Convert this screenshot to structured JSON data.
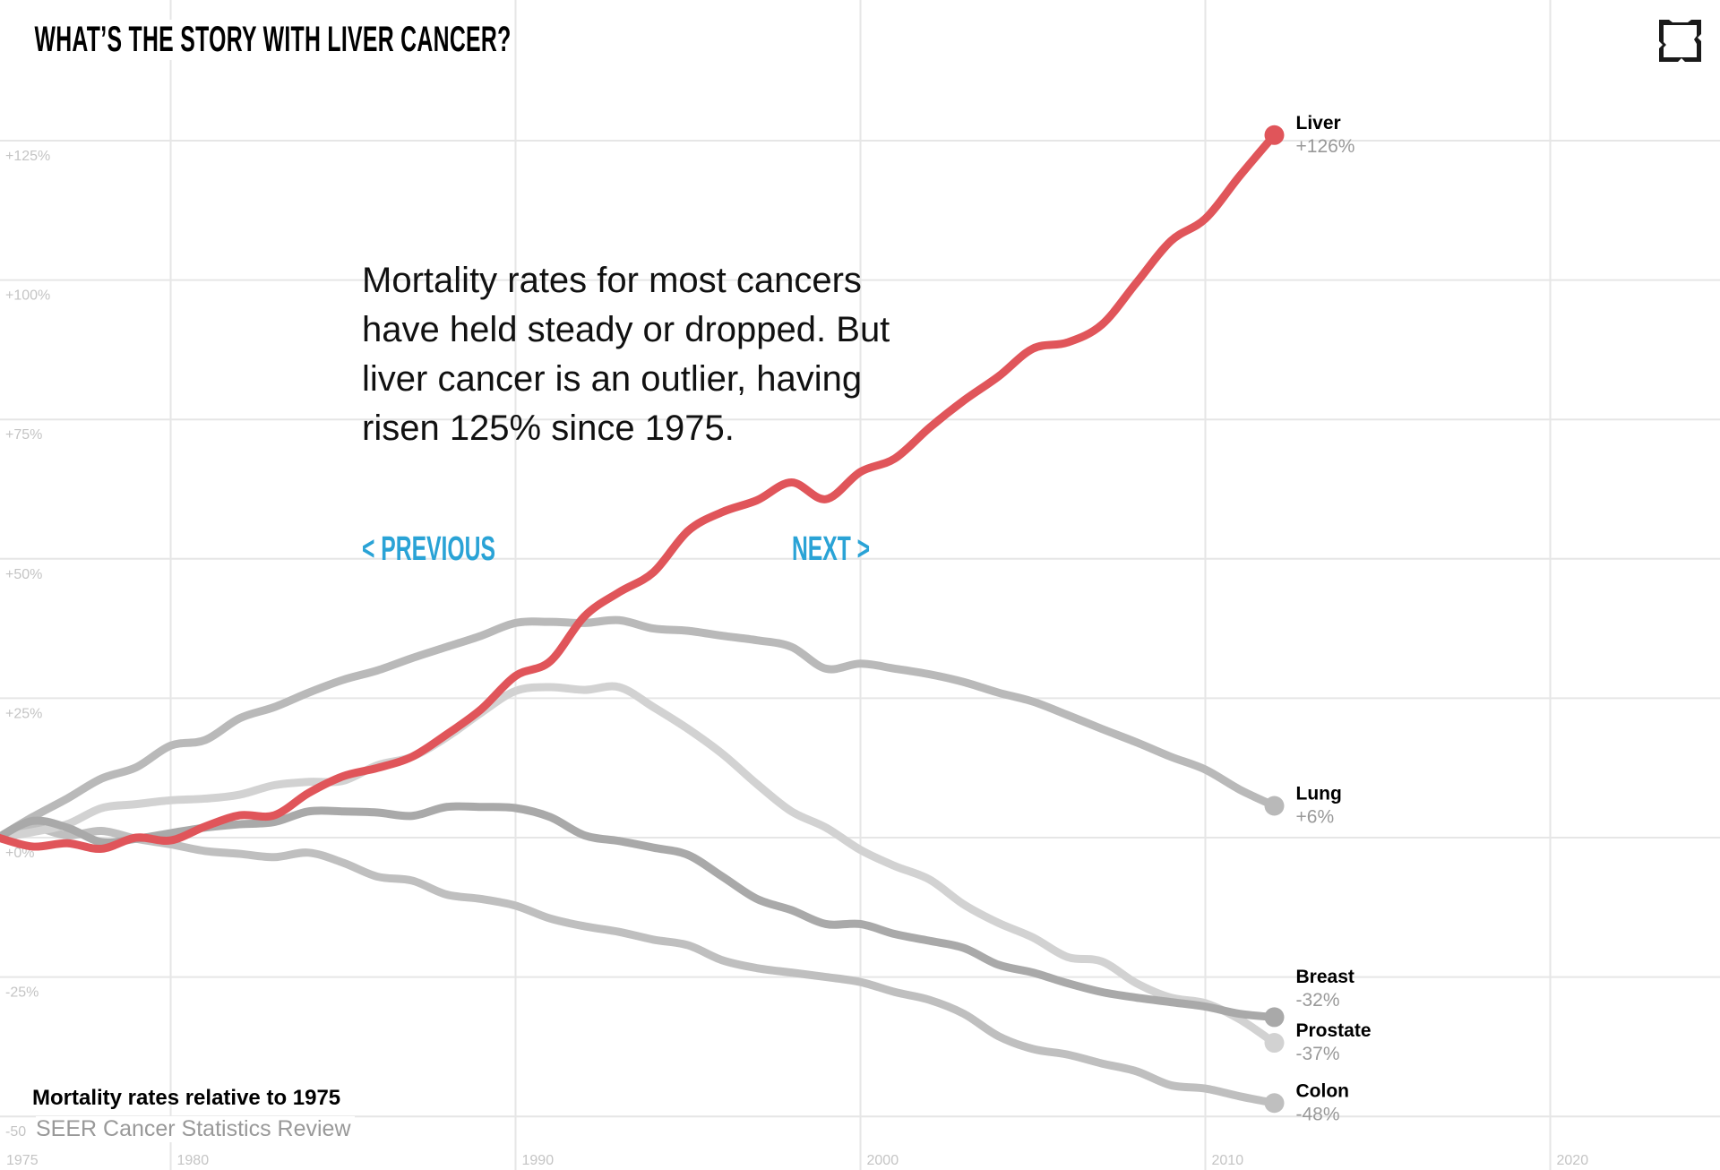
{
  "header": {
    "title": "WHAT’S THE STORY WITH LIVER CANCER?",
    "expand_icon": "fullscreen-icon"
  },
  "story": {
    "text": "Mortality rates for most cancers have held steady or dropped. But liver cancer is an outlier, having risen 125% since 1975.",
    "previous_label": "< PREVIOUS",
    "next_label": "NEXT >"
  },
  "footer": {
    "subtitle": "Mortality rates relative to 1975",
    "source": "SEER Cancer Statistics Review"
  },
  "colors": {
    "accent": "#e0555a",
    "nav": "#2aa3d6",
    "grid": "#e6e6e6"
  },
  "chart_data": {
    "type": "line",
    "title": "WHAT’S THE STORY WITH LIVER CANCER?",
    "ylabel": "Mortality rates relative to 1975",
    "xlim": [
      1975,
      2024
    ],
    "ylim": [
      -50,
      135
    ],
    "grid": true,
    "x_ticks": [
      "1975",
      "1980",
      "1990",
      "2000",
      "2010",
      "2020"
    ],
    "x_tick_values": [
      1975,
      1980,
      1990,
      2000,
      2010,
      2020
    ],
    "y_ticks": [
      "+125%",
      "+100%",
      "+75%",
      "+50%",
      "+25%",
      "+0%",
      "-25%",
      "-50"
    ],
    "y_tick_values": [
      125,
      100,
      75,
      50,
      25,
      0,
      -25,
      -50
    ],
    "x": [
      1975,
      1976,
      1977,
      1978,
      1979,
      1980,
      1981,
      1982,
      1983,
      1984,
      1985,
      1986,
      1987,
      1988,
      1989,
      1990,
      1991,
      1992,
      1993,
      1994,
      1995,
      1996,
      1997,
      1998,
      1999,
      2000,
      2001,
      2002,
      2003,
      2004,
      2005,
      2006,
      2007,
      2008,
      2009,
      2010,
      2011,
      2012
    ],
    "series": [
      {
        "name": "Lung",
        "end_label": "+6%",
        "color": "#b9b9b9",
        "values": [
          0,
          3.7,
          7,
          10.6,
          12.6,
          16.5,
          17.5,
          21.4,
          23.4,
          26,
          28.3,
          30,
          32.2,
          34.2,
          36.2,
          38.5,
          38.7,
          38.5,
          39,
          37.5,
          37.1,
          36.2,
          35.4,
          34.2,
          30.3,
          31.2,
          30.3,
          29.3,
          27.9,
          26,
          24.4,
          22,
          19.5,
          17.1,
          14.5,
          12.2,
          8.6,
          5.7
        ]
      },
      {
        "name": "Colon",
        "end_label": "-48%",
        "color": "#bfbfbf",
        "values": [
          0,
          1.8,
          0.4,
          1.2,
          -0.2,
          -1.2,
          -2.4,
          -2.9,
          -3.5,
          -2.7,
          -4.5,
          -7,
          -7.7,
          -10.2,
          -11,
          -12.2,
          -14.5,
          -15.9,
          -16.9,
          -18.3,
          -19.3,
          -22,
          -23.4,
          -24.2,
          -25,
          -25.9,
          -27.7,
          -29.1,
          -31.6,
          -35.6,
          -37.9,
          -38.9,
          -40.5,
          -41.9,
          -44.4,
          -45,
          -46.4,
          -47.6
        ]
      },
      {
        "name": "Prostate",
        "end_label": "-37%",
        "color": "#d2d2d2",
        "values": [
          0,
          1,
          2.4,
          5.3,
          6,
          6.7,
          7,
          7.7,
          9.4,
          10,
          10.2,
          13,
          14.5,
          18,
          22.4,
          26.3,
          27,
          26.5,
          27,
          23.4,
          19.5,
          15,
          9.6,
          4.7,
          1.8,
          -2.2,
          -5.1,
          -7.5,
          -12,
          -15.3,
          -17.9,
          -21.4,
          -22.2,
          -26.1,
          -28.7,
          -29.7,
          -32.6,
          -36.8
        ]
      },
      {
        "name": "Breast",
        "end_label": "-32%",
        "color": "#a9a9a9",
        "values": [
          0,
          3,
          1.8,
          -0.8,
          -0.2,
          0.8,
          1.8,
          2.4,
          2.8,
          4.7,
          4.7,
          4.5,
          3.9,
          5.5,
          5.5,
          5.3,
          3.7,
          0.4,
          -0.6,
          -1.8,
          -3.1,
          -7,
          -11,
          -13,
          -15.5,
          -15.5,
          -17.3,
          -18.5,
          -19.8,
          -22.8,
          -24.2,
          -26.1,
          -27.7,
          -28.7,
          -29.5,
          -30.3,
          -31.6,
          -32.2
        ]
      },
      {
        "name": "Liver",
        "end_label": "+126%",
        "color": "#e0555a",
        "values": [
          0,
          -1.6,
          -1,
          -2,
          0,
          -0.5,
          2,
          4,
          4,
          8,
          11,
          12.5,
          14.5,
          18.5,
          23,
          29,
          31.6,
          39.7,
          44,
          47.6,
          55,
          58.4,
          60.5,
          63.7,
          60.7,
          65.6,
          68,
          73.5,
          78.4,
          82.7,
          87.7,
          88.8,
          92,
          99.5,
          107,
          111,
          118.7,
          126
        ]
      }
    ]
  }
}
